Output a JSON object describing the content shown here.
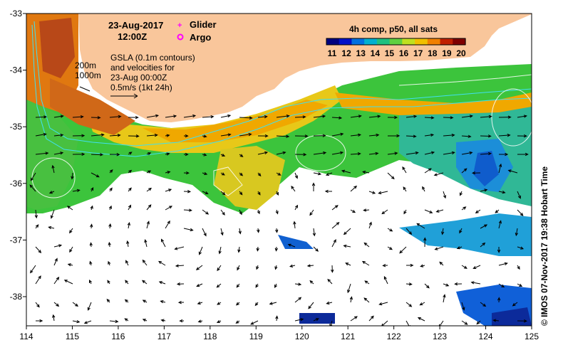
{
  "title": {
    "date": "23-Aug-2017",
    "time": "12:00Z"
  },
  "legend": {
    "glider": {
      "label": "Glider",
      "color": "#ff00ff",
      "icon": "plus-icon"
    },
    "argo": {
      "label": "Argo",
      "color": "#ff00ff",
      "icon": "circle-icon"
    }
  },
  "annotation": {
    "line1": "GSLA (0.1m contours)",
    "line2": "and velocities for",
    "line3": "23-Aug 00:00Z",
    "line4": "0.5m/s (1kt 24h)"
  },
  "isobaths": {
    "label_200": "200m",
    "label_1000": "1000m",
    "color": "#40e0f0"
  },
  "colorbar": {
    "title": "4h comp, p50, all sats",
    "ticks": [
      "11",
      "12",
      "13",
      "14",
      "15",
      "16",
      "17",
      "18",
      "19",
      "20"
    ],
    "colors": [
      "#00007f",
      "#0010c8",
      "#0070e0",
      "#00b0d0",
      "#20c080",
      "#60d040",
      "#c0e020",
      "#f0c000",
      "#f08000",
      "#c02000",
      "#7f0000"
    ]
  },
  "axes": {
    "lon_ticks": [
      "114",
      "115",
      "116",
      "117",
      "118",
      "119",
      "120",
      "121",
      "122",
      "123",
      "124",
      "125"
    ],
    "lat_ticks": [
      "-33",
      "-34",
      "-35",
      "-36",
      "-37",
      "-38"
    ]
  },
  "colors": {
    "land": "#f9c69b",
    "cloud": "#ffffff",
    "vector": "#000000"
  },
  "credit": "© IMOS 07-Nov-2017 19:38 Hobart Time"
}
